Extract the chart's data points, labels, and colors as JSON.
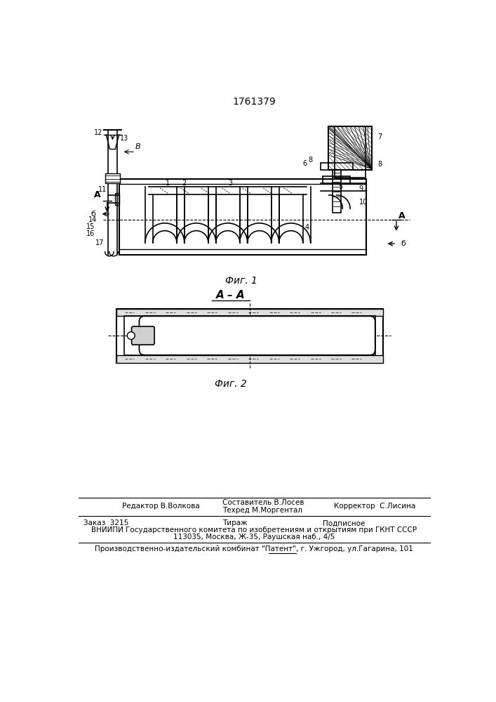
{
  "patent_number": "1761379",
  "fig1_label": "Фиг. 1",
  "fig2_label": "Фиг. 2",
  "section_label": "А – А",
  "footer_line1_left": "Редактор В.Волкова",
  "footer_line1_mid_top": "Составитель В.Лосев",
  "footer_line1_mid_bot": "Техред М.Моргентал",
  "footer_line1_right": "Корректор  С.Лисина",
  "footer_line2_left": "Заказ  3215",
  "footer_line2_mid": "Тираж",
  "footer_line2_right": "Подписное",
  "footer_line3": "ВНИИПИ Государственного комитета по изобретениям и открытиям при ГКНТ СССР",
  "footer_line4": "113035, Москва, Ж-35, Раушская наб., 4/5",
  "footer_line5": "Производственно-издательский комбинат \"Патент\", г. Ужгород, ул.Гагарина, 101",
  "bg_color": "#ffffff"
}
